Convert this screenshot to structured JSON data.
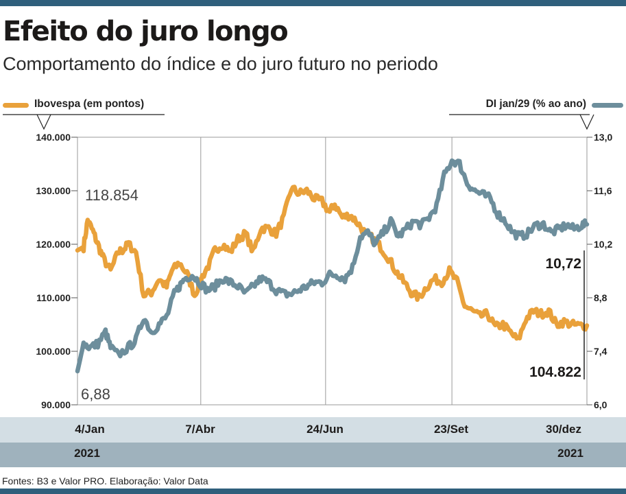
{
  "title": "Efeito do juro longo",
  "subtitle": "Comportamento do índice e do juro futuro no periodo",
  "footer": "Fontes: B3 e Valor PRO. Elaboração: Valor Data",
  "colors": {
    "ibovespa": "#e9a13b",
    "di": "#6d8e9c",
    "accent": "#2f5f7c"
  },
  "chart_data": {
    "type": "line",
    "grid": true,
    "legend_placement": "top",
    "x_labels": [
      "4/Jan",
      "7/Abr",
      "24/Jun",
      "23/Set",
      "30/dez"
    ],
    "x_year_labels": [
      "2021",
      "2021"
    ],
    "left_axis": {
      "label": "Ibovespa (em pontos)",
      "ticks": [
        "140.000",
        "130.000",
        "120.000",
        "110.000",
        "100.000",
        "90.000"
      ],
      "ylim": [
        90000,
        140000
      ]
    },
    "right_axis": {
      "label": "DI jan/29 (% ao ano)",
      "ticks": [
        "13,0",
        "11,6",
        "10,2",
        "8,8",
        "7,4",
        "6,0"
      ],
      "ylim": [
        6.0,
        13.0
      ]
    },
    "annotations": {
      "ibov_start": "118.854",
      "ibov_end": "104.822",
      "di_start": "6,88",
      "di_end": "10,72"
    },
    "series": [
      {
        "name": "Ibovespa (em pontos)",
        "axis": "left",
        "x": [
          0,
          0.012,
          0.02,
          0.03,
          0.04,
          0.05,
          0.065,
          0.08,
          0.09,
          0.1,
          0.115,
          0.13,
          0.145,
          0.16,
          0.175,
          0.185,
          0.2,
          0.215,
          0.23,
          0.245,
          0.26,
          0.27,
          0.285,
          0.3,
          0.315,
          0.33,
          0.345,
          0.36,
          0.375,
          0.39,
          0.405,
          0.42,
          0.435,
          0.45,
          0.465,
          0.48,
          0.495,
          0.505,
          0.52,
          0.535,
          0.55,
          0.565,
          0.58,
          0.595,
          0.61,
          0.625,
          0.64,
          0.655,
          0.67,
          0.685,
          0.7,
          0.715,
          0.73,
          0.745,
          0.76,
          0.775,
          0.79,
          0.805,
          0.82,
          0.835,
          0.85,
          0.865,
          0.88,
          0.895,
          0.91,
          0.925,
          0.94,
          0.955,
          0.97,
          0.985,
          1.0
        ],
        "y": [
          118854,
          119500,
          124500,
          122500,
          120000,
          117500,
          115000,
          118500,
          119000,
          120000,
          118500,
          110500,
          111000,
          113500,
          112000,
          115000,
          116500,
          114500,
          110500,
          114000,
          116500,
          119000,
          120000,
          118500,
          121000,
          122000,
          118500,
          123000,
          123000,
          122000,
          125000,
          130500,
          129500,
          130000,
          128500,
          128000,
          126000,
          127500,
          125000,
          125500,
          124000,
          122000,
          121000,
          119500,
          117500,
          115000,
          113000,
          111000,
          110000,
          112000,
          113500,
          113000,
          115000,
          113000,
          108500,
          107500,
          106500,
          107000,
          104500,
          105000,
          103500,
          102000,
          106000,
          107500,
          107000,
          107500,
          105000,
          105500,
          105000,
          104800,
          104822
        ]
      },
      {
        "name": "DI jan/29 (% ao ano)",
        "axis": "right",
        "x": [
          0,
          0.012,
          0.025,
          0.04,
          0.055,
          0.065,
          0.08,
          0.1,
          0.115,
          0.13,
          0.145,
          0.16,
          0.175,
          0.19,
          0.2,
          0.21,
          0.225,
          0.24,
          0.255,
          0.27,
          0.285,
          0.3,
          0.315,
          0.33,
          0.345,
          0.36,
          0.375,
          0.39,
          0.405,
          0.42,
          0.435,
          0.45,
          0.465,
          0.48,
          0.495,
          0.51,
          0.525,
          0.54,
          0.555,
          0.57,
          0.585,
          0.6,
          0.615,
          0.63,
          0.645,
          0.66,
          0.675,
          0.69,
          0.705,
          0.72,
          0.735,
          0.75,
          0.765,
          0.78,
          0.795,
          0.81,
          0.825,
          0.84,
          0.855,
          0.87,
          0.885,
          0.9,
          0.915,
          0.93,
          0.945,
          0.96,
          0.975,
          0.99,
          1.0
        ],
        "y": [
          6.88,
          7.6,
          7.5,
          7.6,
          7.9,
          7.5,
          7.3,
          7.5,
          7.7,
          8.3,
          7.9,
          8.1,
          8.3,
          8.9,
          9.1,
          9.3,
          9.4,
          9.2,
          9.0,
          9.1,
          9.3,
          9.2,
          9.1,
          8.9,
          9.1,
          9.3,
          9.2,
          9.0,
          8.9,
          8.9,
          9.0,
          9.1,
          9.2,
          9.2,
          9.4,
          9.4,
          9.3,
          9.6,
          10.4,
          10.5,
          10.2,
          10.5,
          10.8,
          10.4,
          10.6,
          10.8,
          10.7,
          10.9,
          11.2,
          12.0,
          12.4,
          12.3,
          11.8,
          11.6,
          11.5,
          11.4,
          11.0,
          10.8,
          10.5,
          10.4,
          10.5,
          10.7,
          10.72,
          10.5,
          10.6,
          10.7,
          10.6,
          10.7,
          10.72
        ]
      }
    ]
  }
}
